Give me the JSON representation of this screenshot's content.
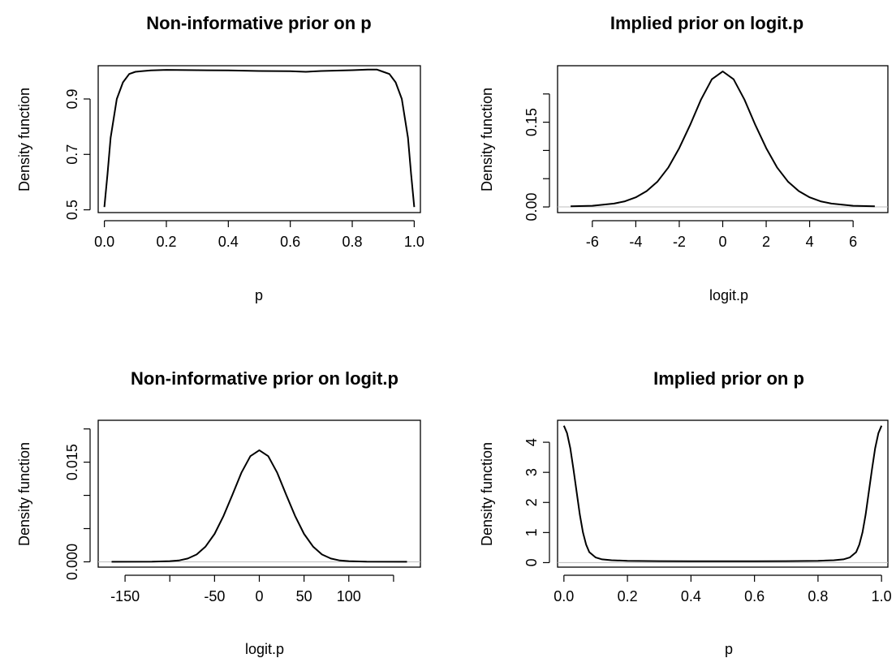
{
  "chart_data": [
    {
      "type": "line",
      "title": "Non-informative prior on p",
      "xlabel": "p",
      "ylabel": "Density function",
      "xlim": [
        -0.02,
        1.02
      ],
      "ylim": [
        0.49,
        1.02
      ],
      "xticks": [
        0.0,
        0.2,
        0.4,
        0.6,
        0.8,
        1.0
      ],
      "xtick_labels": [
        "0.0",
        "0.2",
        "0.4",
        "0.6",
        "0.8",
        "1.0"
      ],
      "yticks": [
        0.5,
        0.7,
        0.9
      ],
      "ytick_labels": [
        "0.5",
        "0.7",
        "0.9"
      ],
      "zero_line": false,
      "series": [
        {
          "x": [
            0.0,
            0.01,
            0.02,
            0.04,
            0.06,
            0.08,
            0.1,
            0.12,
            0.15,
            0.2,
            0.3,
            0.4,
            0.5,
            0.6,
            0.65,
            0.7,
            0.8,
            0.85,
            0.88,
            0.9,
            0.92,
            0.94,
            0.96,
            0.98,
            0.99,
            1.0
          ],
          "y": [
            0.51,
            0.63,
            0.76,
            0.9,
            0.96,
            0.99,
            0.998,
            1.0,
            1.003,
            1.005,
            1.004,
            1.003,
            1.001,
            1.0,
            0.998,
            1.001,
            1.004,
            1.006,
            1.006,
            0.998,
            0.99,
            0.96,
            0.9,
            0.76,
            0.63,
            0.51
          ]
        }
      ]
    },
    {
      "type": "line",
      "title": "Implied prior on logit.p",
      "xlabel": "logit.p",
      "ylabel": "Density function",
      "xlim": [
        -7.6,
        7.6
      ],
      "ylim": [
        -0.01,
        0.25
      ],
      "xticks": [
        -6,
        -4,
        -2,
        0,
        2,
        4,
        6
      ],
      "xtick_labels": [
        "-6",
        "-4",
        "-2",
        "0",
        "2",
        "4",
        "6"
      ],
      "yticks": [
        0.0,
        0.05,
        0.1,
        0.15,
        0.2
      ],
      "ytick_labels": [
        "0.00",
        "",
        "",
        "0.15",
        ""
      ],
      "zero_line": true,
      "series": [
        {
          "x": [
            -7,
            -6,
            -5,
            -4.5,
            -4,
            -3.5,
            -3,
            -2.5,
            -2,
            -1.5,
            -1,
            -0.5,
            0,
            0.5,
            1,
            1.5,
            2,
            2.5,
            3,
            3.5,
            4,
            4.5,
            5,
            6,
            7
          ],
          "y": [
            0.001,
            0.002,
            0.006,
            0.01,
            0.017,
            0.028,
            0.045,
            0.07,
            0.104,
            0.145,
            0.19,
            0.226,
            0.24,
            0.226,
            0.19,
            0.145,
            0.104,
            0.07,
            0.045,
            0.028,
            0.017,
            0.01,
            0.006,
            0.002,
            0.001
          ]
        }
      ]
    },
    {
      "type": "line",
      "title": "Non-informative prior on logit.p",
      "xlabel": "logit.p",
      "ylabel": "Density function",
      "xlim": [
        -180,
        180
      ],
      "ylim": [
        -0.0008,
        0.0213
      ],
      "xticks": [
        -150,
        -100,
        -50,
        0,
        50,
        100,
        150
      ],
      "xtick_labels": [
        "-150",
        "",
        "-50",
        "0",
        "50",
        "100",
        ""
      ],
      "yticks": [
        0.0,
        0.005,
        0.01,
        0.015,
        0.02
      ],
      "ytick_labels": [
        "0.000",
        "",
        "",
        "0.015",
        ""
      ],
      "zero_line": true,
      "series": [
        {
          "x": [
            -165,
            -120,
            -100,
            -90,
            -80,
            -70,
            -60,
            -50,
            -40,
            -30,
            -20,
            -10,
            0,
            10,
            20,
            30,
            40,
            50,
            60,
            70,
            80,
            90,
            100,
            120,
            165
          ],
          "y": [
            0.0,
            2e-05,
            0.0001,
            0.0002,
            0.0005,
            0.0011,
            0.0023,
            0.0042,
            0.0069,
            0.0101,
            0.0134,
            0.0159,
            0.0168,
            0.0159,
            0.0134,
            0.0101,
            0.0069,
            0.0042,
            0.0023,
            0.0011,
            0.0005,
            0.0002,
            0.0001,
            2e-05,
            0.0
          ]
        }
      ]
    },
    {
      "type": "line",
      "title": "Implied prior on p",
      "xlabel": "p",
      "ylabel": "Density function",
      "xlim": [
        -0.02,
        1.02
      ],
      "ylim": [
        -0.15,
        4.73
      ],
      "xticks": [
        0.0,
        0.2,
        0.4,
        0.6,
        0.8,
        1.0
      ],
      "xtick_labels": [
        "0.0",
        "0.2",
        "0.4",
        "0.6",
        "0.8",
        "1.0"
      ],
      "yticks": [
        0,
        1,
        2,
        3,
        4
      ],
      "ytick_labels": [
        "0",
        "1",
        "2",
        "3",
        "4"
      ],
      "zero_line": true,
      "series": [
        {
          "x": [
            0.0,
            0.01,
            0.02,
            0.03,
            0.04,
            0.05,
            0.06,
            0.07,
            0.08,
            0.1,
            0.12,
            0.15,
            0.2,
            0.3,
            0.4,
            0.5,
            0.6,
            0.7,
            0.8,
            0.85,
            0.88,
            0.9,
            0.92,
            0.93,
            0.94,
            0.95,
            0.96,
            0.97,
            0.98,
            0.99,
            1.0
          ],
          "y": [
            4.55,
            4.3,
            3.8,
            3.1,
            2.35,
            1.6,
            1.0,
            0.6,
            0.35,
            0.17,
            0.11,
            0.08,
            0.06,
            0.05,
            0.045,
            0.045,
            0.045,
            0.05,
            0.06,
            0.08,
            0.11,
            0.17,
            0.35,
            0.6,
            1.0,
            1.6,
            2.35,
            3.1,
            3.8,
            4.3,
            4.55
          ]
        }
      ]
    }
  ]
}
